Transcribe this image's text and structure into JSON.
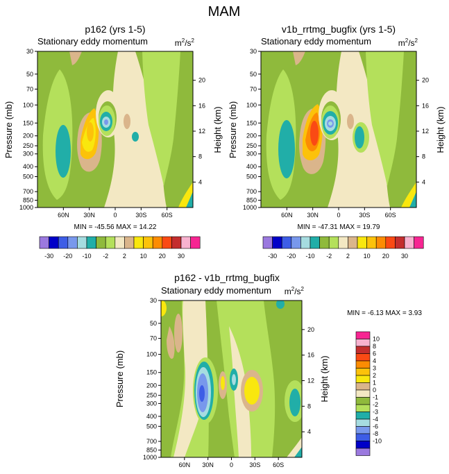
{
  "figure": {
    "title": "MAM"
  },
  "legend_colors": {
    "clr_n30": "#9b79df",
    "clr_n20": "#0000c8",
    "clr_n15": "#3d5de6",
    "clr_n10": "#7898ec",
    "clr_n5": "#a6dce0",
    "clr_n3": "#21aea8",
    "clr_n2": "#8fba3c",
    "clr_n1": "#b4e05b",
    "clr_0": "#f3e8c3",
    "clr_1": "#dab58b",
    "clr_2": "#f9e70e",
    "clr_3": "#fcc20a",
    "clr_4": "#fc8c03",
    "clr_6": "#fa4a14",
    "clr_8": "#c42e2e",
    "clr_10": "#f8b2cf",
    "clr_max": "#f72592"
  },
  "chart_data": [
    {
      "type": "contour",
      "title": "p162 (yrs 1-5)",
      "subtitle": "Stationary eddy momentum",
      "units": "m²/s²",
      "units_base": "m",
      "units_sup1": "2",
      "units_mid": "/s",
      "units_sup2": "2",
      "ylabel": "Pressure (mb)",
      "ylabel2": "Height (km)",
      "xticks": [
        "60N",
        "30N",
        "0",
        "30S",
        "60S"
      ],
      "xtick_values": [
        60,
        30,
        0,
        -30,
        -60
      ],
      "xlim": [
        90,
        -90
      ],
      "yticks": [
        "30",
        "50",
        "70",
        "100",
        "150",
        "200",
        "250",
        "300",
        "400",
        "500",
        "700",
        "850",
        "1000"
      ],
      "ytick_values": [
        30,
        50,
        70,
        100,
        150,
        200,
        250,
        300,
        400,
        500,
        700,
        850,
        1000
      ],
      "ylim": [
        1000,
        30
      ],
      "y2ticks": [
        "20",
        "16",
        "12",
        "8",
        "4"
      ],
      "y2tick_values": [
        20,
        16,
        12,
        8,
        4
      ],
      "stats": "MIN = -45.56  MAX =  14.22",
      "min": -45.56,
      "max": 14.22,
      "contour_levels": [
        -30,
        -20,
        -15,
        -10,
        -5,
        -3,
        -2,
        0,
        2,
        5,
        10,
        15,
        20,
        25,
        30
      ],
      "features": [
        {
          "lat": 67,
          "p": 230,
          "value": -3,
          "note": "broad negative column"
        },
        {
          "lat": 27,
          "p": 210,
          "value": 14,
          "note": "positive maximum"
        },
        {
          "lat": 5,
          "p": 150,
          "value": -45,
          "note": "negative minimum"
        },
        {
          "lat": -22,
          "p": 195,
          "value": -5,
          "note": "small negative"
        }
      ],
      "labelbar": {
        "labels": [
          "-30",
          "-20",
          "-10",
          "-2",
          "2",
          "10",
          "20",
          "30"
        ],
        "colors": [
          "#9b79df",
          "#0000c8",
          "#3d5de6",
          "#7898ec",
          "#a6dce0",
          "#21aea8",
          "#8fba3c",
          "#b4e05b",
          "#f3e8c3",
          "#dab58b",
          "#f9e70e",
          "#fcc20a",
          "#fc8c03",
          "#fa4a14",
          "#c42e2e",
          "#f8b2cf",
          "#f72592"
        ]
      }
    },
    {
      "type": "contour",
      "title": "v1b_rrtmg_bugfix (yrs 1-5)",
      "subtitle": "Stationary eddy momentum",
      "units": "m²/s²",
      "units_base": "m",
      "units_sup1": "2",
      "units_mid": "/s",
      "units_sup2": "2",
      "ylabel": "Pressure (mb)",
      "ylabel2": "Height (km)",
      "xticks": [
        "60N",
        "30N",
        "0",
        "30S",
        "60S"
      ],
      "xtick_values": [
        60,
        30,
        0,
        -30,
        -60
      ],
      "xlim": [
        90,
        -90
      ],
      "yticks": [
        "30",
        "50",
        "70",
        "100",
        "150",
        "200",
        "250",
        "300",
        "400",
        "500",
        "700",
        "850",
        "1000"
      ],
      "ytick_values": [
        30,
        50,
        70,
        100,
        150,
        200,
        250,
        300,
        400,
        500,
        700,
        850,
        1000
      ],
      "ylim": [
        1000,
        30
      ],
      "y2ticks": [
        "20",
        "16",
        "12",
        "8",
        "4"
      ],
      "y2tick_values": [
        20,
        16,
        12,
        8,
        4
      ],
      "stats": "MIN = -47.31  MAX =  19.79",
      "min": -47.31,
      "max": 19.79,
      "contour_levels": [
        -30,
        -20,
        -15,
        -10,
        -5,
        -3,
        -2,
        0,
        2,
        5,
        10,
        15,
        20,
        25,
        30
      ],
      "features": [
        {
          "lat": 67,
          "p": 230,
          "value": -5,
          "note": "broad negative column"
        },
        {
          "lat": 27,
          "p": 200,
          "value": 19,
          "note": "positive maximum"
        },
        {
          "lat": 5,
          "p": 150,
          "value": -47,
          "note": "negative minimum"
        },
        {
          "lat": -22,
          "p": 200,
          "value": -8,
          "note": "negative patch"
        }
      ],
      "labelbar": {
        "labels": [
          "-30",
          "-20",
          "-10",
          "-2",
          "2",
          "10",
          "20",
          "30"
        ],
        "colors": [
          "#9b79df",
          "#0000c8",
          "#3d5de6",
          "#7898ec",
          "#a6dce0",
          "#21aea8",
          "#8fba3c",
          "#b4e05b",
          "#f3e8c3",
          "#dab58b",
          "#f9e70e",
          "#fcc20a",
          "#fc8c03",
          "#fa4a14",
          "#c42e2e",
          "#f8b2cf",
          "#f72592"
        ]
      }
    },
    {
      "type": "contour",
      "title": "p162 - v1b_rrtmg_bugfix",
      "subtitle": "Stationary eddy momentum",
      "units": "m²/s²",
      "units_base": "m",
      "units_sup1": "2",
      "units_mid": "/s",
      "units_sup2": "2",
      "ylabel": "Pressure (mb)",
      "ylabel2": "Height (km)",
      "xticks": [
        "60N",
        "30N",
        "0",
        "30S",
        "60S"
      ],
      "xtick_values": [
        60,
        30,
        0,
        -30,
        -60
      ],
      "xlim": [
        90,
        -90
      ],
      "yticks": [
        "30",
        "50",
        "70",
        "100",
        "150",
        "200",
        "250",
        "300",
        "400",
        "500",
        "700",
        "850",
        "1000"
      ],
      "ytick_values": [
        30,
        50,
        70,
        100,
        150,
        200,
        250,
        300,
        400,
        500,
        700,
        850,
        1000
      ],
      "ylim": [
        1000,
        30
      ],
      "y2ticks": [
        "20",
        "16",
        "12",
        "8",
        "4"
      ],
      "y2tick_values": [
        20,
        16,
        12,
        8,
        4
      ],
      "stats": "MIN =  -6.13  MAX =   3.93",
      "min": -6.13,
      "max": 3.93,
      "contour_levels": [
        -10,
        -8,
        -6,
        -4,
        -3,
        -2,
        -1,
        0,
        1,
        2,
        3,
        4,
        6,
        8,
        10
      ],
      "features": [
        {
          "lat": 30,
          "p": 220,
          "value": -6,
          "note": "negative minimum"
        },
        {
          "lat": 5,
          "p": 210,
          "value": 2,
          "note": "positive band"
        },
        {
          "lat": -28,
          "p": 230,
          "value": 3,
          "note": "positive maximum"
        },
        {
          "lat": -70,
          "p": 260,
          "value": -3,
          "note": "negative patch"
        }
      ],
      "labelbar": {
        "labels": [
          "10",
          "8",
          "6",
          "4",
          "3",
          "2",
          "1",
          "0",
          "-1",
          "-2",
          "-3",
          "-4",
          "-6",
          "-8",
          "-10"
        ],
        "colors": [
          "#f72592",
          "#f8b2cf",
          "#c42e2e",
          "#fa4a14",
          "#fc8c03",
          "#fcc20a",
          "#f9e70e",
          "#dab58b",
          "#f3e8c3",
          "#8fba3c",
          "#b4e05b",
          "#21aea8",
          "#a6dce0",
          "#7898ec",
          "#3d5de6",
          "#0000c8",
          "#9b79df"
        ]
      }
    }
  ]
}
